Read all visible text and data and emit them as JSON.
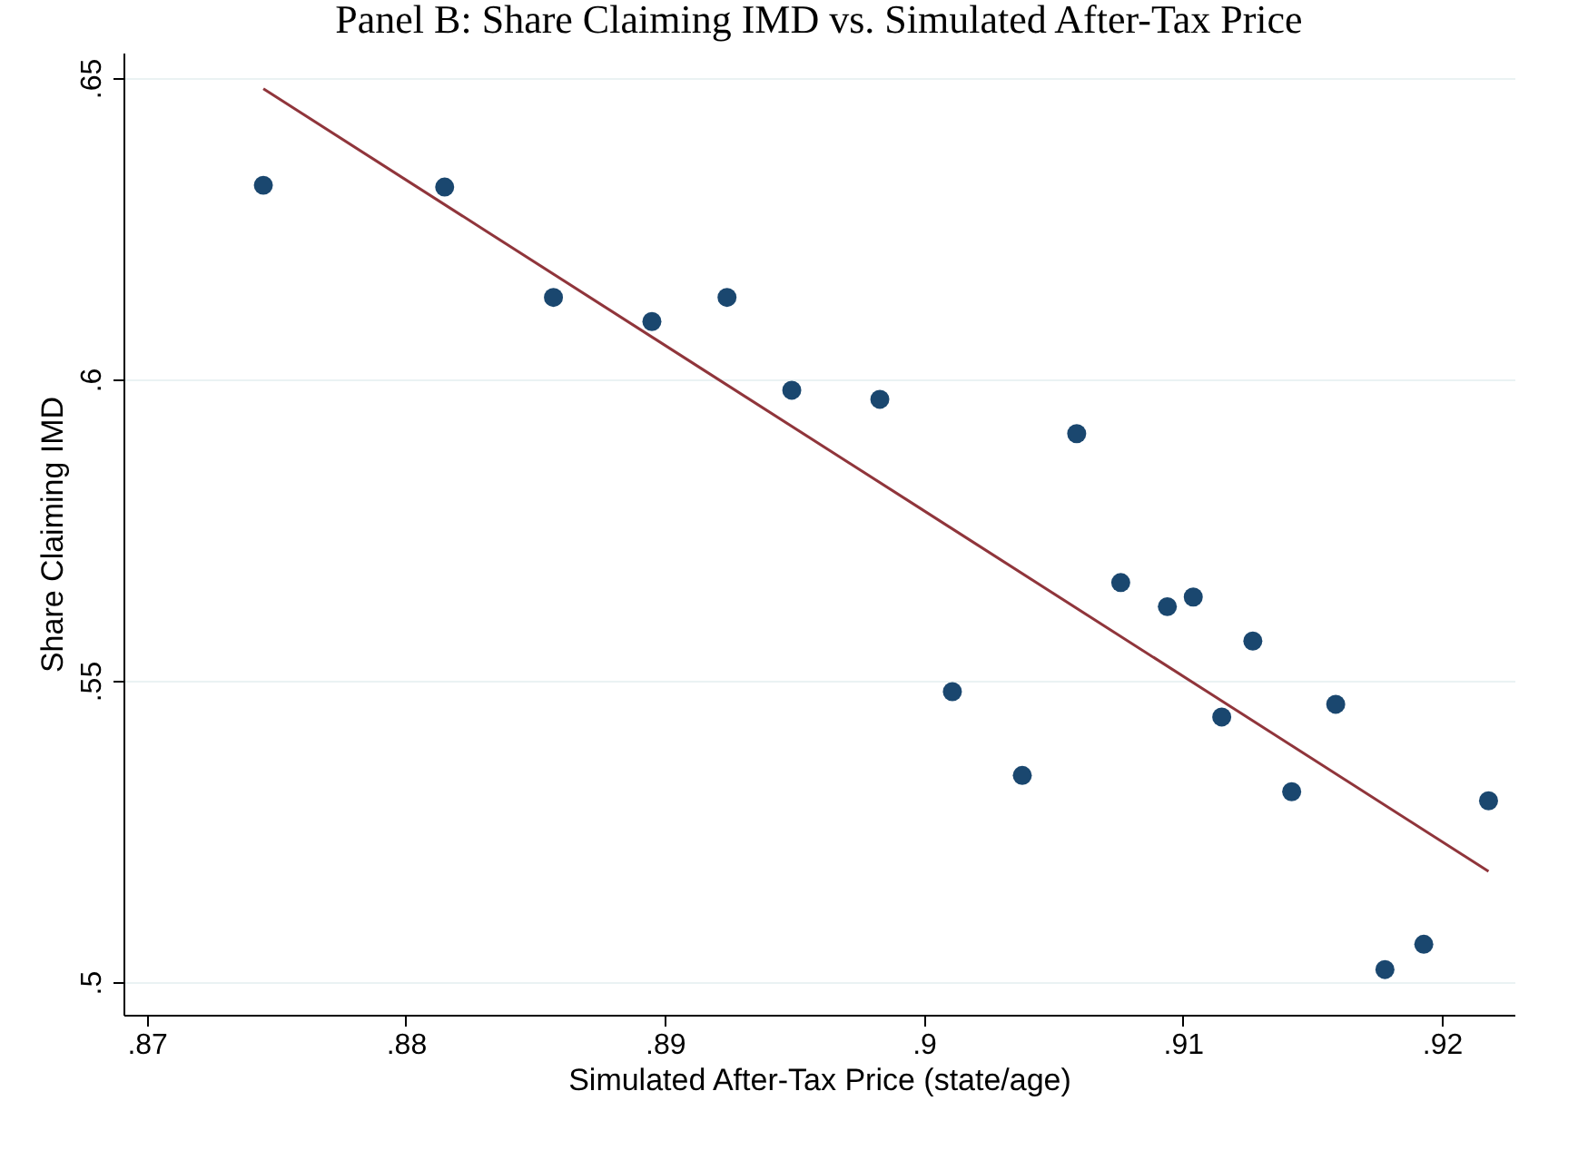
{
  "chart_data": {
    "type": "scatter",
    "title": "Panel B: Share Claiming IMD vs. Simulated After-Tax Price",
    "xlabel": "Simulated After-Tax Price (state/age)",
    "ylabel": "Share Claiming IMD",
    "x": [
      0.8745,
      0.8815,
      0.8857,
      0.8895,
      0.8924,
      0.8949,
      0.8983,
      0.9011,
      0.9038,
      0.9059,
      0.9076,
      0.9094,
      0.9104,
      0.9115,
      0.9127,
      0.9142,
      0.9159,
      0.9178,
      0.9193,
      0.9218
    ],
    "series": [
      {
        "marker": "circle",
        "color": "#1a476f",
        "values": [
          0.6322,
          0.6319,
          0.6136,
          0.6096,
          0.6136,
          0.5982,
          0.5967,
          0.5482,
          0.5343,
          0.591,
          0.5663,
          0.5623,
          0.5639,
          0.544,
          0.5566,
          0.5316,
          0.5461,
          0.5021,
          0.5063,
          0.5301
        ]
      },
      {
        "type": "line",
        "marker": "none",
        "color": "#90353b",
        "x": [
          0.8745,
          0.9218
        ],
        "values": [
          0.6482,
          0.5184
        ]
      }
    ],
    "xlim": [
      0.8691,
      0.9228
    ],
    "ylim": [
      0.4946,
      0.6542
    ],
    "xticks": [
      {
        "value": 0.87,
        "label": ".87"
      },
      {
        "value": 0.88,
        "label": ".88"
      },
      {
        "value": 0.89,
        "label": ".89"
      },
      {
        "value": 0.9,
        "label": ".9"
      },
      {
        "value": 0.91,
        "label": ".91"
      },
      {
        "value": 0.92,
        "label": ".92"
      }
    ],
    "yticks": [
      {
        "value": 0.5,
        "label": ".5"
      },
      {
        "value": 0.55,
        "label": ".55"
      },
      {
        "value": 0.6,
        "label": ".6"
      },
      {
        "value": 0.65,
        "label": ".65"
      }
    ],
    "grid": "y",
    "line_style": "solid"
  }
}
